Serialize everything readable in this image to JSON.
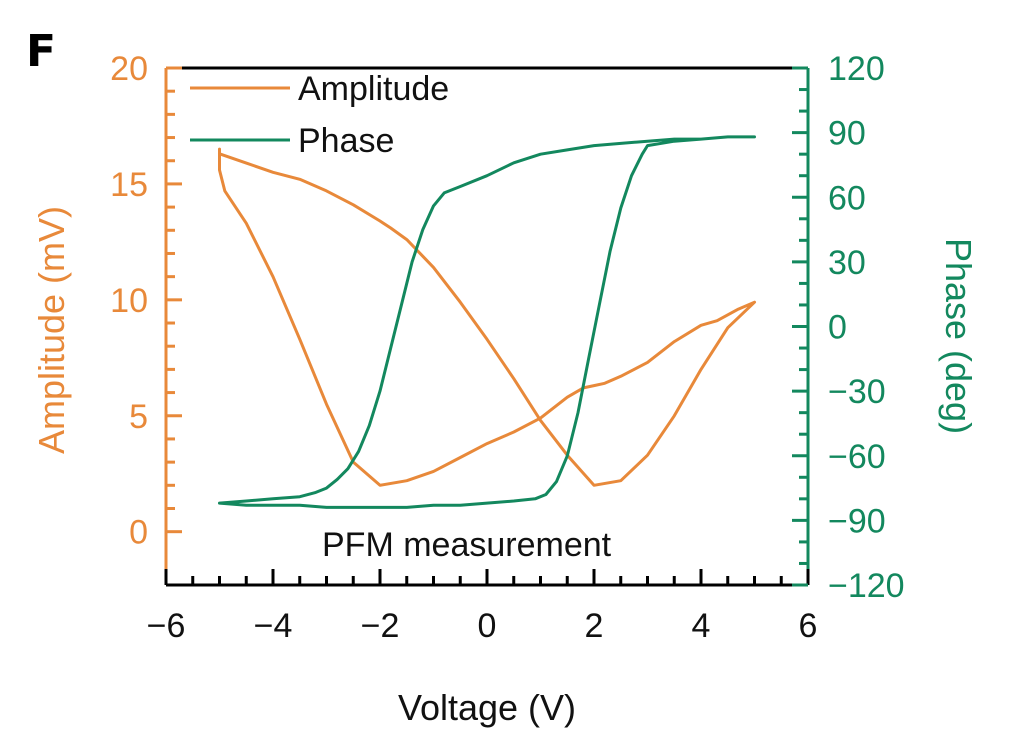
{
  "panel_label": "F",
  "chart_data": {
    "type": "line",
    "xlabel": "Voltage (V)",
    "ylabel_left": "Amplitude (mV)",
    "ylabel_right": "Phase (deg)",
    "xlim": [
      -6,
      6
    ],
    "ylim_left": [
      -2.3,
      20
    ],
    "ylim_right": [
      -120,
      120
    ],
    "x_ticks": [
      -6,
      -4,
      -2,
      0,
      2,
      4,
      6
    ],
    "x_tick_labels": [
      "−6",
      "−4",
      "−2",
      "0",
      "2",
      "4",
      "6"
    ],
    "y_left_ticks": [
      0,
      5,
      10,
      15,
      20
    ],
    "y_left_tick_labels": [
      "0",
      "5",
      "10",
      "15",
      "20"
    ],
    "y_right_ticks": [
      -120,
      -90,
      -60,
      -30,
      0,
      30,
      60,
      90,
      120
    ],
    "y_right_tick_labels": [
      "−120",
      "−90",
      "−60",
      "−30",
      "0",
      "30",
      "60",
      "90",
      "120"
    ],
    "grid": false,
    "legend_position": "top-left",
    "annotation": "PFM measurement",
    "colors": {
      "amplitude": "#E8893A",
      "phase": "#13885E"
    },
    "series": [
      {
        "name": "Amplitude",
        "axis": "left",
        "color": "#E8893A",
        "x": [
          -5.0,
          -4.5,
          -4.0,
          -3.5,
          -3.0,
          -2.5,
          -2.0,
          -1.8,
          -1.5,
          -1.0,
          -0.5,
          0.0,
          0.5,
          1.0,
          1.5,
          2.0,
          2.5,
          3.0,
          3.5,
          4.0,
          4.5,
          5.0,
          4.7,
          4.3,
          4.0,
          3.5,
          3.0,
          2.5,
          2.2,
          2.0,
          1.8,
          1.5,
          1.0,
          0.5,
          0.0,
          -0.5,
          -1.0,
          -1.5,
          -2.0,
          -2.5,
          -3.0,
          -3.5,
          -4.0,
          -4.5,
          -4.9,
          -5.0,
          -5.0
        ],
        "y": [
          16.3,
          15.9,
          15.5,
          15.2,
          14.7,
          14.1,
          13.4,
          13.1,
          12.6,
          11.4,
          9.9,
          8.3,
          6.6,
          4.8,
          3.3,
          2.0,
          2.2,
          3.3,
          5.0,
          7.0,
          8.8,
          9.9,
          9.6,
          9.1,
          8.9,
          8.2,
          7.3,
          6.7,
          6.4,
          6.3,
          6.2,
          5.8,
          4.9,
          4.3,
          3.8,
          3.2,
          2.6,
          2.2,
          2.0,
          3.0,
          5.5,
          8.3,
          11.0,
          13.3,
          14.7,
          15.6,
          16.5
        ]
      },
      {
        "name": "Phase",
        "axis": "right",
        "color": "#13885E",
        "x": [
          -5.0,
          -4.5,
          -4.0,
          -3.5,
          -3.2,
          -3.0,
          -2.8,
          -2.6,
          -2.4,
          -2.2,
          -2.0,
          -1.8,
          -1.6,
          -1.4,
          -1.2,
          -1.0,
          -0.8,
          -0.5,
          0.0,
          0.5,
          1.0,
          1.5,
          2.0,
          2.5,
          3.0,
          3.5,
          4.0,
          4.5,
          5.0,
          4.5,
          4.0,
          3.5,
          3.0,
          2.9,
          2.7,
          2.5,
          2.3,
          2.1,
          1.9,
          1.7,
          1.5,
          1.3,
          1.1,
          0.9,
          0.5,
          0.0,
          -0.5,
          -1.0,
          -1.5,
          -2.0,
          -2.5,
          -3.0,
          -3.5,
          -4.0,
          -4.5,
          -5.0
        ],
        "y": [
          -82,
          -81,
          -80,
          -79,
          -77,
          -75,
          -71,
          -66,
          -58,
          -46,
          -30,
          -10,
          10,
          30,
          45,
          56,
          62,
          65,
          70,
          76,
          80,
          82,
          84,
          85,
          86,
          87,
          87,
          88,
          88,
          88,
          87,
          86,
          84,
          80,
          70,
          55,
          35,
          10,
          -15,
          -40,
          -60,
          -72,
          -78,
          -80,
          -81,
          -82,
          -83,
          -83,
          -84,
          -84,
          -84,
          -84,
          -83,
          -83,
          -83,
          -82
        ]
      }
    ]
  }
}
